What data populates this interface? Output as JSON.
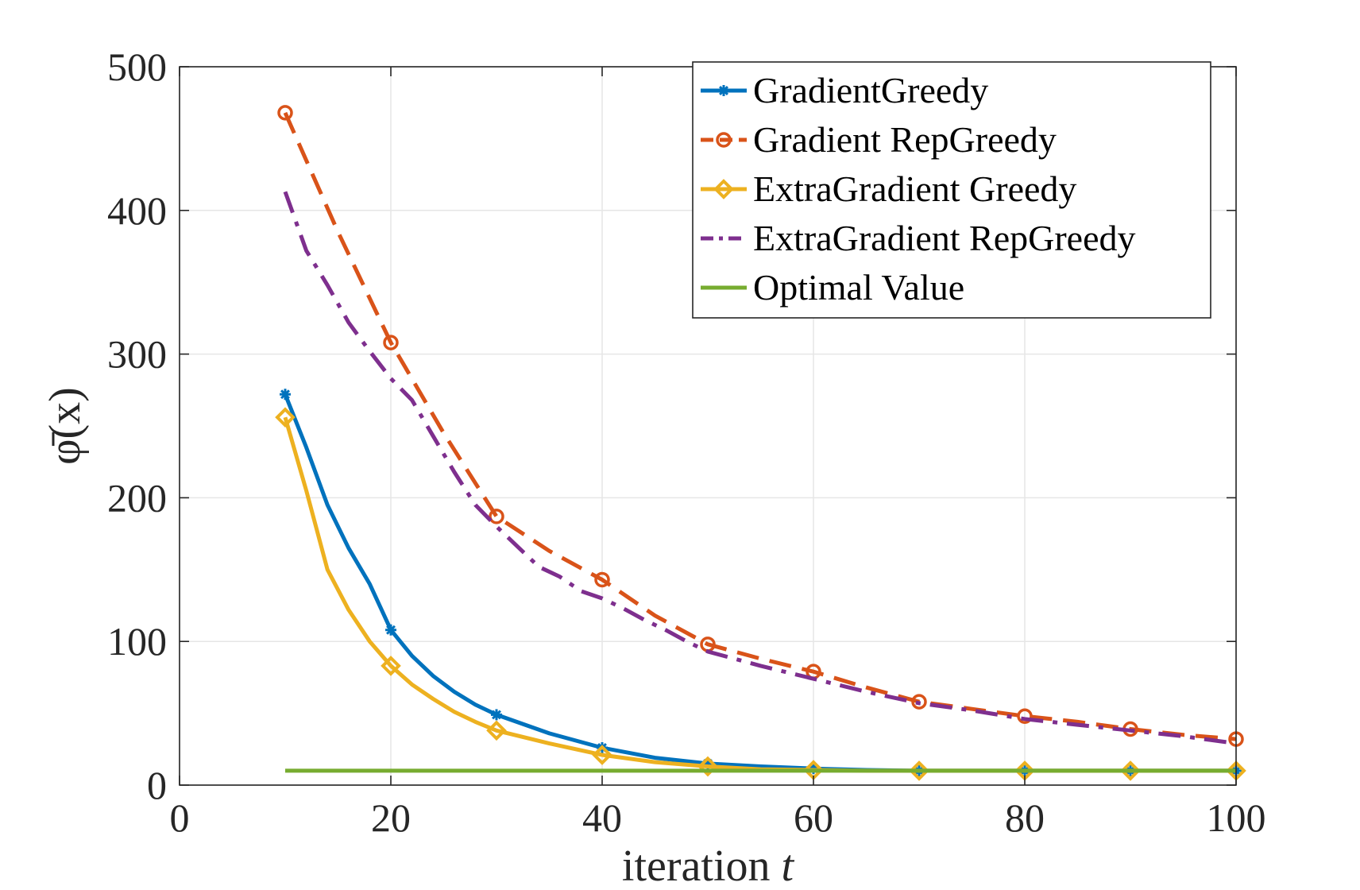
{
  "chart_data": {
    "type": "line",
    "xlabel": "iteration",
    "xlabel_var": "t",
    "ylabel": "φ̄(x)",
    "xlim": [
      0,
      100
    ],
    "ylim": [
      0,
      500
    ],
    "xticks": [
      0,
      20,
      40,
      60,
      80,
      100
    ],
    "yticks": [
      0,
      100,
      200,
      300,
      400,
      500
    ],
    "xtick_labels": [
      "0",
      "20",
      "40",
      "60",
      "80",
      "100"
    ],
    "ytick_labels": [
      "0",
      "100",
      "200",
      "300",
      "400",
      "500"
    ],
    "grid": true,
    "legend_position": "top-right",
    "series": [
      {
        "name": "GradientGreedy",
        "color": "#0072BD",
        "dash": "solid",
        "marker": "star",
        "x": [
          10,
          12,
          14,
          16,
          18,
          20,
          22,
          24,
          26,
          28,
          30,
          35,
          40,
          45,
          50,
          55,
          60,
          65,
          70,
          75,
          80,
          85,
          90,
          95,
          100
        ],
        "y": [
          272,
          235,
          195,
          165,
          140,
          108,
          90,
          76,
          65,
          56,
          49,
          36,
          26,
          19,
          15,
          13,
          11.5,
          10.5,
          10,
          10,
          10,
          10,
          10,
          10,
          10
        ],
        "marker_x": [
          10,
          20,
          30,
          40,
          50,
          60,
          70,
          80,
          90,
          100
        ],
        "marker_y": [
          272,
          108,
          49,
          26,
          15,
          11.5,
          10,
          10,
          10,
          10
        ]
      },
      {
        "name": "Gradient RepGreedy",
        "color": "#D95319",
        "dash": "dashed",
        "marker": "circle",
        "x": [
          10,
          15,
          20,
          25,
          30,
          35,
          40,
          45,
          50,
          55,
          60,
          65,
          70,
          75,
          80,
          85,
          90,
          95,
          100
        ],
        "y": [
          468,
          385,
          308,
          245,
          187,
          163,
          143,
          118,
          98,
          88,
          79,
          68,
          58,
          53,
          48,
          44,
          39,
          35,
          32
        ],
        "marker_x": [
          10,
          20,
          30,
          40,
          50,
          60,
          70,
          80,
          90,
          100
        ],
        "marker_y": [
          468,
          308,
          187,
          143,
          98,
          79,
          58,
          48,
          39,
          32
        ]
      },
      {
        "name": "ExtraGradient Greedy",
        "color": "#EDB120",
        "dash": "solid",
        "marker": "diamond",
        "x": [
          10,
          12,
          14,
          16,
          18,
          20,
          22,
          24,
          26,
          28,
          30,
          35,
          40,
          45,
          50,
          55,
          60,
          65,
          70,
          75,
          80,
          85,
          90,
          95,
          100
        ],
        "y": [
          256,
          205,
          150,
          122,
          100,
          83,
          70,
          60,
          51,
          44,
          38,
          29,
          21,
          16,
          13,
          11,
          10.5,
          10,
          10,
          10,
          10,
          10,
          10,
          10,
          10
        ],
        "marker_x": [
          10,
          20,
          30,
          40,
          50,
          60,
          70,
          80,
          90,
          100
        ],
        "marker_y": [
          256,
          83,
          38,
          21,
          13,
          10.5,
          10,
          10,
          10,
          10
        ]
      },
      {
        "name": "ExtraGradient RepGreedy",
        "color": "#7E2F8E",
        "dash": "dashdot",
        "marker": "none",
        "x": [
          10,
          12,
          14,
          16,
          18,
          20,
          22,
          24,
          26,
          28,
          30,
          32,
          34,
          36,
          38,
          40,
          42,
          44,
          46,
          48,
          50,
          55,
          60,
          65,
          70,
          75,
          80,
          85,
          90,
          95,
          100
        ],
        "y": [
          413,
          372,
          348,
          322,
          302,
          283,
          268,
          243,
          218,
          195,
          180,
          166,
          152,
          145,
          135,
          130,
          123,
          115,
          108,
          100,
          93,
          83,
          74,
          65,
          57,
          52,
          46,
          42,
          38,
          34,
          29
        ]
      },
      {
        "name": "Optimal Value",
        "color": "#77AC30",
        "dash": "solid",
        "marker": "none",
        "x": [
          10,
          100
        ],
        "y": [
          10,
          10
        ]
      }
    ]
  }
}
